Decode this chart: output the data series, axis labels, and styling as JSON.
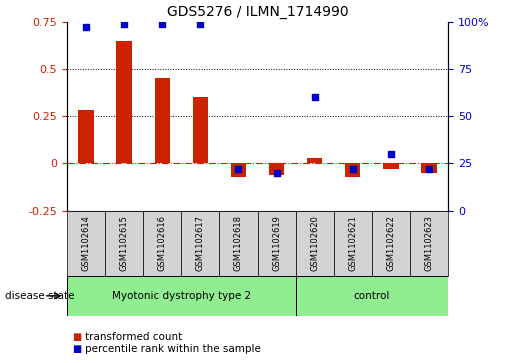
{
  "title": "GDS5276 / ILMN_1714990",
  "samples": [
    "GSM1102614",
    "GSM1102615",
    "GSM1102616",
    "GSM1102617",
    "GSM1102618",
    "GSM1102619",
    "GSM1102620",
    "GSM1102621",
    "GSM1102622",
    "GSM1102623"
  ],
  "transformed_count": [
    0.28,
    0.65,
    0.45,
    0.35,
    -0.07,
    -0.06,
    0.03,
    -0.07,
    -0.03,
    -0.05
  ],
  "percentile_rank": [
    97,
    99,
    99,
    99,
    22,
    20,
    60,
    22,
    30,
    22
  ],
  "disease_groups": [
    {
      "label": "Myotonic dystrophy type 2",
      "start": 0,
      "end": 6,
      "color": "#90EE90"
    },
    {
      "label": "control",
      "start": 6,
      "end": 10,
      "color": "#90EE90"
    }
  ],
  "ylim_left": [
    -0.25,
    0.75
  ],
  "ylim_right": [
    0,
    100
  ],
  "yticks_left": [
    -0.25,
    0.0,
    0.25,
    0.5,
    0.75
  ],
  "yticks_right": [
    0,
    25,
    50,
    75,
    100
  ],
  "bar_color": "#CC2200",
  "dot_color": "#0000CC",
  "dot_size": 18,
  "hline_color": "#CC2200",
  "grid_dotted_vals": [
    0.25,
    0.5
  ],
  "label_area_color": "#d3d3d3",
  "disease_state_label": "disease state",
  "legend_bar_label": "transformed count",
  "legend_dot_label": "percentile rank within the sample",
  "bar_width": 0.4,
  "group_separator": 5.5,
  "n_disease": 6,
  "n_control": 4
}
